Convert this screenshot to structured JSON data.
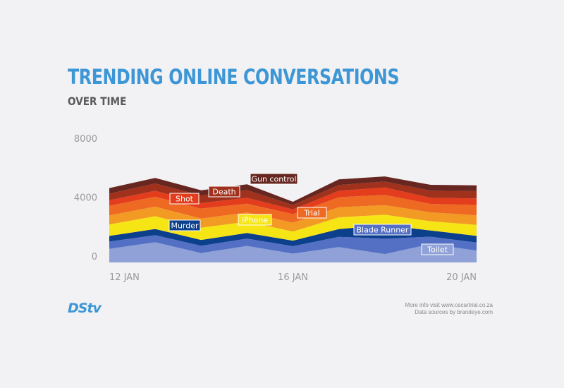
{
  "header": {
    "title": "TRENDING ONLINE CONVERSATIONS",
    "subtitle": "OVER TIME"
  },
  "footer": {
    "logo": "DStv",
    "line1": "More info visit www.oscartrial.co.za",
    "line2": "Data sources by brandeye.com"
  },
  "chart_data": {
    "type": "area",
    "stacked": true,
    "title": "TRENDING ONLINE CONVERSATIONS",
    "subtitle": "OVER TIME",
    "x": [
      "12 JAN",
      "13 JAN",
      "14 JAN",
      "15 JAN",
      "16 JAN",
      "17 JAN",
      "18 JAN",
      "19 JAN",
      "20 JAN"
    ],
    "x_tick_labels": [
      "12 JAN",
      "16 JAN",
      "20 JAN"
    ],
    "y_tick_labels": [
      "0",
      "4000",
      "8000"
    ],
    "ylim": [
      0,
      8000
    ],
    "grid": false,
    "legend": "inline labels",
    "series": [
      {
        "name": "Toilet",
        "color": "#8fa1d6",
        "values": [
          920,
          1370,
          630,
          1120,
          600,
          1040,
          570,
          1250,
          800
        ]
      },
      {
        "name": "Blade Runner",
        "color": "#5470c4",
        "values": [
          500,
          480,
          500,
          500,
          500,
          700,
          1050,
          500,
          550
        ]
      },
      {
        "name": "Murder",
        "color": "#0c3f8c",
        "values": [
          380,
          420,
          400,
          380,
          380,
          520,
          920,
          420,
          450
        ]
      },
      {
        "name": "iPhone",
        "color": "#f6e515",
        "values": [
          780,
          870,
          830,
          770,
          620,
          800,
          700,
          630,
          750
        ]
      },
      {
        "name": "Shot",
        "color": "#f29a24",
        "values": [
          620,
          650,
          620,
          620,
          600,
          690,
          650,
          600,
          650
        ]
      },
      {
        "name": "Trial",
        "color": "#ee6a23",
        "values": [
          650,
          670,
          680,
          600,
          580,
          680,
          700,
          570,
          700
        ]
      },
      {
        "name": "Death",
        "color": "#e33d1d",
        "values": [
          370,
          400,
          380,
          400,
          320,
          430,
          500,
          420,
          450
        ]
      },
      {
        "name": "Gun control",
        "color": "#a0311c",
        "values": [
          450,
          500,
          500,
          520,
          300,
          400,
          400,
          480,
          500
        ]
      },
      {
        "name": "",
        "color": "#672720",
        "values": [
          380,
          380,
          360,
          400,
          220,
          380,
          350,
          400,
          380
        ]
      }
    ],
    "annotations": [
      {
        "text": "Gun control",
        "series": "Gun control",
        "fill": "#672720"
      },
      {
        "text": "Death",
        "series": "Death",
        "fill": "#a0311c"
      },
      {
        "text": "Shot",
        "series": "Shot",
        "fill": "#e33d1d"
      },
      {
        "text": "Trial",
        "series": "Trial",
        "fill": "#ee6a23"
      },
      {
        "text": "iPhone",
        "series": "iPhone",
        "fill": "#f6e515"
      },
      {
        "text": "Murder",
        "series": "Murder",
        "fill": "#0c3f8c"
      },
      {
        "text": "Blade Runner",
        "series": "Blade Runner",
        "fill": "#5470c4"
      },
      {
        "text": "Toilet",
        "series": "Toilet",
        "fill": "#8fa1d6"
      }
    ]
  }
}
